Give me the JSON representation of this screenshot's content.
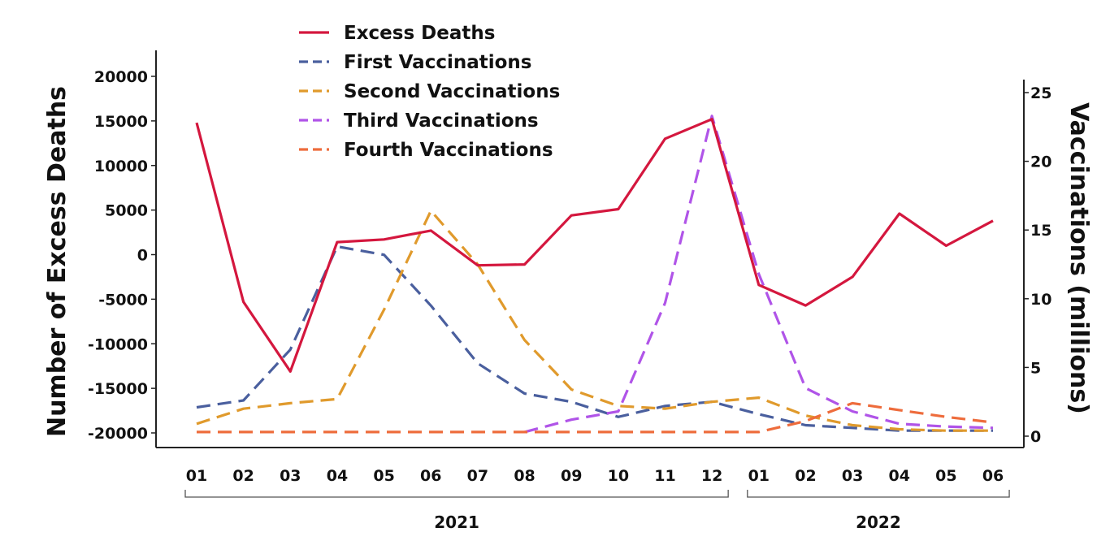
{
  "chart_data": {
    "type": "line",
    "categories": [
      "01",
      "02",
      "03",
      "04",
      "05",
      "06",
      "07",
      "08",
      "09",
      "10",
      "11",
      "12",
      "01",
      "02",
      "03",
      "04",
      "05",
      "06"
    ],
    "years": [
      {
        "label": "2021",
        "from": 0,
        "to": 11
      },
      {
        "label": "2022",
        "from": 12,
        "to": 17
      }
    ],
    "ylabel_left": "Number of Excess Deaths",
    "ylabel_right": "Vaccinations (millions)",
    "ylim_left": [
      -20000,
      20000
    ],
    "yticks_left": [
      20000,
      15000,
      10000,
      5000,
      0,
      -5000,
      -10000,
      -15000,
      -20000
    ],
    "ylim_right": [
      0,
      25
    ],
    "yticks_right": [
      25,
      20,
      15,
      10,
      5,
      0
    ],
    "legend_position": "top-left",
    "grid": false,
    "series": [
      {
        "name": "Excess Deaths",
        "axis": "left",
        "style": "solid",
        "color": "#d4173e",
        "values": [
          14800,
          -5300,
          -13100,
          1400,
          1700,
          2700,
          -1200,
          -1100,
          4400,
          5100,
          13000,
          15200,
          -3400,
          -5700,
          -2500,
          4600,
          1000,
          3800
        ]
      },
      {
        "name": "First Vaccinations",
        "axis": "right",
        "style": "dashed",
        "color": "#4a5f9e",
        "values": [
          2.1,
          2.6,
          6.3,
          13.8,
          13.2,
          9.5,
          5.3,
          3.1,
          2.5,
          1.4,
          2.2,
          2.5,
          1.6,
          0.8,
          0.6,
          0.4,
          0.4,
          0.4
        ]
      },
      {
        "name": "Second Vaccinations",
        "axis": "right",
        "style": "dashed",
        "color": "#e09a2c",
        "values": [
          0.9,
          2.0,
          2.4,
          2.7,
          9.2,
          16.4,
          12.5,
          7.0,
          3.4,
          2.2,
          2.0,
          2.5,
          2.8,
          1.5,
          0.8,
          0.5,
          0.4,
          0.4
        ]
      },
      {
        "name": "Third Vaccinations",
        "axis": "right",
        "style": "dashed",
        "color": "#b054e8",
        "values": [
          null,
          null,
          null,
          null,
          null,
          null,
          null,
          0.3,
          1.2,
          1.8,
          9.7,
          23.3,
          11.8,
          3.5,
          1.8,
          0.9,
          0.7,
          0.6
        ]
      },
      {
        "name": "Fourth Vaccinations",
        "axis": "right",
        "style": "dashed",
        "color": "#ee6c3c",
        "values": [
          0.3,
          0.3,
          0.3,
          0.3,
          0.3,
          0.3,
          0.3,
          0.3,
          0.3,
          0.3,
          0.3,
          0.3,
          0.3,
          1.1,
          2.4,
          1.9,
          1.4,
          1.0
        ]
      }
    ]
  }
}
